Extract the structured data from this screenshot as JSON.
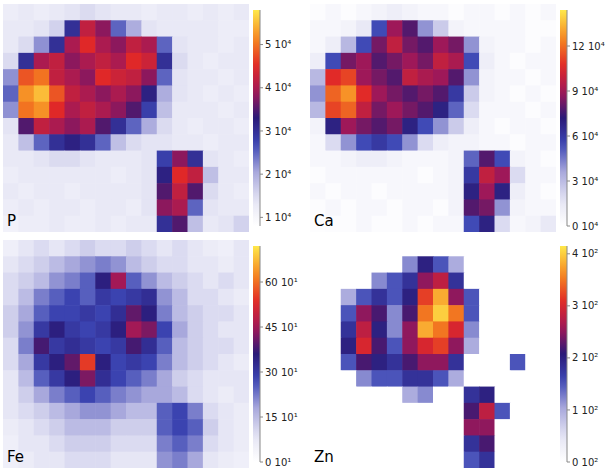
{
  "chart_data": [
    {
      "type": "heatmap",
      "title": "P",
      "tick_labels": false,
      "colorbar_lim": [
        8000,
        58000
      ],
      "colorbar_ticks": [
        {
          "value": 10000,
          "label": "1 10⁴"
        },
        {
          "value": 20000,
          "label": "2 10⁴"
        },
        {
          "value": 30000,
          "label": "3 10⁴"
        },
        {
          "value": 40000,
          "label": "4 10⁴"
        },
        {
          "value": 50000,
          "label": "5 10⁴"
        }
      ],
      "cells": [
        [
          12000,
          13000,
          12000,
          13000,
          14000,
          15000,
          14000,
          13000,
          13000,
          12000,
          13000,
          13000,
          12000,
          13000,
          12000,
          13000
        ],
        [
          13000,
          13000,
          14000,
          16000,
          30000,
          42000,
          38000,
          25000,
          20000,
          14000,
          13000,
          13000,
          13000,
          13000,
          12000,
          12000
        ],
        [
          13000,
          15000,
          22000,
          30000,
          40000,
          45000,
          40000,
          38000,
          42000,
          40000,
          25000,
          14000,
          13000,
          13000,
          12000,
          13000
        ],
        [
          15000,
          30000,
          40000,
          42000,
          38000,
          40000,
          42000,
          40000,
          45000,
          43000,
          30000,
          15000,
          13000,
          12000,
          13000,
          13000
        ],
        [
          22000,
          48000,
          50000,
          42000,
          40000,
          38000,
          45000,
          43000,
          42000,
          38000,
          25000,
          14000,
          13000,
          13000,
          12000,
          13000
        ],
        [
          25000,
          52000,
          55000,
          48000,
          42000,
          40000,
          38000,
          40000,
          38000,
          32000,
          20000,
          14000,
          13000,
          12000,
          13000,
          12000
        ],
        [
          22000,
          50000,
          52000,
          45000,
          40000,
          42000,
          40000,
          38000,
          35000,
          28000,
          18000,
          13000,
          13000,
          13000,
          12000,
          13000
        ],
        [
          14000,
          35000,
          42000,
          40000,
          38000,
          40000,
          35000,
          30000,
          25000,
          20000,
          15000,
          13000,
          12000,
          13000,
          13000,
          12000
        ],
        [
          13000,
          18000,
          25000,
          30000,
          32000,
          30000,
          25000,
          18000,
          15000,
          14000,
          14000,
          13000,
          13000,
          12000,
          13000,
          13000
        ],
        [
          13000,
          13000,
          14000,
          15000,
          15000,
          14000,
          13000,
          13000,
          13000,
          14000,
          28000,
          38000,
          30000,
          14000,
          13000,
          12000
        ],
        [
          12000,
          13000,
          13000,
          13000,
          13000,
          13000,
          13000,
          12000,
          13000,
          14000,
          32000,
          45000,
          42000,
          18000,
          13000,
          13000
        ],
        [
          13000,
          12000,
          13000,
          13000,
          12000,
          13000,
          13000,
          13000,
          13000,
          14000,
          35000,
          42000,
          35000,
          15000,
          13000,
          12000
        ],
        [
          12000,
          13000,
          12000,
          13000,
          13000,
          12000,
          13000,
          13000,
          12000,
          14000,
          38000,
          40000,
          25000,
          14000,
          13000,
          13000
        ],
        [
          11000,
          12000,
          12000,
          13000,
          12000,
          12000,
          13000,
          12000,
          13000,
          13000,
          30000,
          35000,
          18000,
          13000,
          14000,
          16000
        ]
      ]
    },
    {
      "type": "heatmap",
      "title": "Ca",
      "tick_labels": false,
      "colorbar_lim": [
        0,
        144000
      ],
      "colorbar_ticks": [
        {
          "value": 0,
          "label": "0 10⁴"
        },
        {
          "value": 30000,
          "label": "3 10⁴"
        },
        {
          "value": 60000,
          "label": "6 10⁴"
        },
        {
          "value": 90000,
          "label": "9 10⁴"
        },
        {
          "value": 120000,
          "label": "12 10⁴"
        }
      ],
      "cells": [
        [
          2000,
          5000,
          2000,
          5000,
          8000,
          11000,
          8000,
          5000,
          5000,
          2000,
          5000,
          5000,
          2000,
          5000,
          2000,
          5000
        ],
        [
          5000,
          5000,
          8000,
          14000,
          54000,
          89000,
          78000,
          40000,
          25000,
          8000,
          5000,
          5000,
          5000,
          5000,
          2000,
          2000
        ],
        [
          5000,
          11000,
          31000,
          54000,
          83000,
          98000,
          83000,
          78000,
          89000,
          83000,
          40000,
          8000,
          5000,
          5000,
          2000,
          5000
        ],
        [
          11000,
          54000,
          83000,
          89000,
          78000,
          83000,
          89000,
          83000,
          98000,
          92000,
          54000,
          11000,
          5000,
          2000,
          5000,
          5000
        ],
        [
          31000,
          107000,
          112000,
          89000,
          83000,
          78000,
          98000,
          92000,
          89000,
          78000,
          40000,
          8000,
          5000,
          5000,
          2000,
          5000
        ],
        [
          40000,
          118000,
          127000,
          107000,
          89000,
          83000,
          78000,
          83000,
          78000,
          60000,
          25000,
          8000,
          5000,
          2000,
          5000,
          2000
        ],
        [
          31000,
          112000,
          118000,
          98000,
          83000,
          89000,
          83000,
          78000,
          69000,
          49000,
          20000,
          5000,
          5000,
          5000,
          2000,
          5000
        ],
        [
          8000,
          69000,
          89000,
          83000,
          78000,
          83000,
          69000,
          54000,
          40000,
          25000,
          11000,
          5000,
          2000,
          5000,
          5000,
          2000
        ],
        [
          5000,
          20000,
          40000,
          54000,
          60000,
          54000,
          40000,
          20000,
          11000,
          8000,
          8000,
          5000,
          5000,
          2000,
          5000,
          5000
        ],
        [
          5000,
          5000,
          8000,
          11000,
          11000,
          8000,
          5000,
          5000,
          5000,
          8000,
          49000,
          78000,
          54000,
          8000,
          5000,
          2000
        ],
        [
          2000,
          5000,
          5000,
          5000,
          5000,
          5000,
          5000,
          2000,
          5000,
          8000,
          60000,
          98000,
          89000,
          20000,
          5000,
          5000
        ],
        [
          5000,
          2000,
          5000,
          5000,
          2000,
          5000,
          5000,
          5000,
          5000,
          8000,
          69000,
          89000,
          69000,
          11000,
          5000,
          2000
        ],
        [
          2000,
          5000,
          2000,
          5000,
          5000,
          2000,
          5000,
          5000,
          2000,
          8000,
          78000,
          83000,
          40000,
          8000,
          5000,
          5000
        ],
        [
          1000,
          2000,
          2000,
          5000,
          2000,
          2000,
          5000,
          2000,
          5000,
          5000,
          54000,
          69000,
          20000,
          5000,
          8000,
          14000
        ]
      ]
    },
    {
      "type": "heatmap",
      "title": "Fe",
      "tick_labels": false,
      "colorbar_lim": [
        0,
        720
      ],
      "colorbar_ticks": [
        {
          "value": 0,
          "label": "0 10¹"
        },
        {
          "value": 150,
          "label": "15 10¹"
        },
        {
          "value": 300,
          "label": "30 10¹"
        },
        {
          "value": 450,
          "label": "45 10¹"
        },
        {
          "value": 600,
          "label": "60 10¹"
        }
      ],
      "cells": [
        [
          50,
          80,
          100,
          80,
          100,
          120,
          100,
          100,
          120,
          100,
          80,
          100,
          80,
          60,
          50,
          80
        ],
        [
          80,
          100,
          120,
          150,
          180,
          200,
          220,
          200,
          150,
          120,
          100,
          100,
          80,
          80,
          60,
          80
        ],
        [
          100,
          120,
          150,
          200,
          220,
          250,
          350,
          450,
          250,
          200,
          150,
          120,
          100,
          80,
          100,
          80
        ],
        [
          100,
          150,
          220,
          250,
          280,
          250,
          300,
          280,
          300,
          320,
          200,
          150,
          100,
          100,
          80,
          60
        ],
        [
          120,
          180,
          250,
          280,
          280,
          300,
          280,
          320,
          400,
          350,
          220,
          150,
          120,
          100,
          100,
          80
        ],
        [
          120,
          200,
          300,
          350,
          300,
          280,
          300,
          350,
          450,
          420,
          280,
          180,
          120,
          100,
          80,
          80
        ],
        [
          100,
          220,
          380,
          300,
          320,
          300,
          280,
          300,
          380,
          320,
          250,
          150,
          120,
          100,
          100,
          80
        ],
        [
          100,
          180,
          300,
          350,
          400,
          550,
          350,
          280,
          300,
          280,
          220,
          150,
          120,
          100,
          80,
          60
        ],
        [
          80,
          150,
          250,
          300,
          350,
          420,
          320,
          280,
          250,
          220,
          180,
          120,
          100,
          80,
          80,
          80
        ],
        [
          80,
          120,
          180,
          220,
          250,
          280,
          250,
          220,
          200,
          180,
          180,
          150,
          100,
          80,
          60,
          80
        ],
        [
          80,
          100,
          120,
          150,
          180,
          200,
          200,
          180,
          150,
          150,
          250,
          280,
          220,
          100,
          80,
          60
        ],
        [
          60,
          80,
          100,
          120,
          150,
          150,
          150,
          120,
          120,
          120,
          250,
          280,
          250,
          120,
          80,
          60
        ],
        [
          50,
          80,
          80,
          100,
          120,
          120,
          120,
          100,
          100,
          100,
          220,
          250,
          220,
          100,
          80,
          60
        ],
        [
          50,
          60,
          80,
          80,
          100,
          100,
          100,
          80,
          80,
          80,
          200,
          220,
          180,
          80,
          60,
          50
        ]
      ]
    },
    {
      "type": "heatmap",
      "title": "Zn",
      "tick_labels": false,
      "colorbar_lim": [
        0,
        415
      ],
      "colorbar_ticks": [
        {
          "value": 0,
          "label": "0 10²"
        },
        {
          "value": 100,
          "label": "1 10²"
        },
        {
          "value": 200,
          "label": "2 10²"
        },
        {
          "value": 300,
          "label": "3 10²"
        },
        {
          "value": 400,
          "label": "4 10²"
        }
      ],
      "cells": [
        [
          0,
          0,
          0,
          0,
          0,
          0,
          0,
          0,
          0,
          0,
          0,
          0,
          0,
          0,
          0,
          0
        ],
        [
          0,
          0,
          0,
          0,
          0,
          0,
          120,
          200,
          150,
          100,
          0,
          0,
          0,
          0,
          0,
          0
        ],
        [
          0,
          0,
          0,
          0,
          120,
          150,
          180,
          250,
          280,
          180,
          0,
          0,
          0,
          0,
          0,
          0
        ],
        [
          0,
          0,
          100,
          150,
          180,
          150,
          200,
          320,
          380,
          250,
          150,
          0,
          0,
          0,
          0,
          0
        ],
        [
          0,
          0,
          150,
          250,
          220,
          120,
          220,
          350,
          400,
          350,
          150,
          0,
          0,
          0,
          0,
          0
        ],
        [
          0,
          0,
          180,
          280,
          200,
          120,
          250,
          380,
          350,
          300,
          120,
          0,
          0,
          0,
          0,
          0
        ],
        [
          0,
          0,
          200,
          300,
          220,
          150,
          250,
          300,
          320,
          250,
          100,
          0,
          0,
          0,
          0,
          0
        ],
        [
          0,
          0,
          150,
          220,
          200,
          180,
          220,
          250,
          250,
          180,
          0,
          0,
          0,
          150,
          0,
          0
        ],
        [
          0,
          0,
          0,
          120,
          150,
          150,
          180,
          180,
          150,
          100,
          0,
          0,
          0,
          0,
          0,
          0
        ],
        [
          0,
          0,
          0,
          0,
          0,
          0,
          100,
          120,
          0,
          0,
          180,
          200,
          0,
          0,
          0,
          0
        ],
        [
          0,
          0,
          0,
          0,
          0,
          0,
          0,
          0,
          0,
          0,
          220,
          280,
          150,
          0,
          0,
          0
        ],
        [
          0,
          0,
          0,
          0,
          0,
          0,
          0,
          0,
          0,
          0,
          250,
          250,
          0,
          0,
          0,
          0
        ],
        [
          0,
          0,
          0,
          0,
          0,
          0,
          0,
          0,
          0,
          0,
          180,
          220,
          0,
          0,
          0,
          0
        ],
        [
          0,
          0,
          0,
          0,
          0,
          0,
          0,
          0,
          0,
          0,
          150,
          180,
          0,
          0,
          0,
          0
        ]
      ]
    }
  ]
}
